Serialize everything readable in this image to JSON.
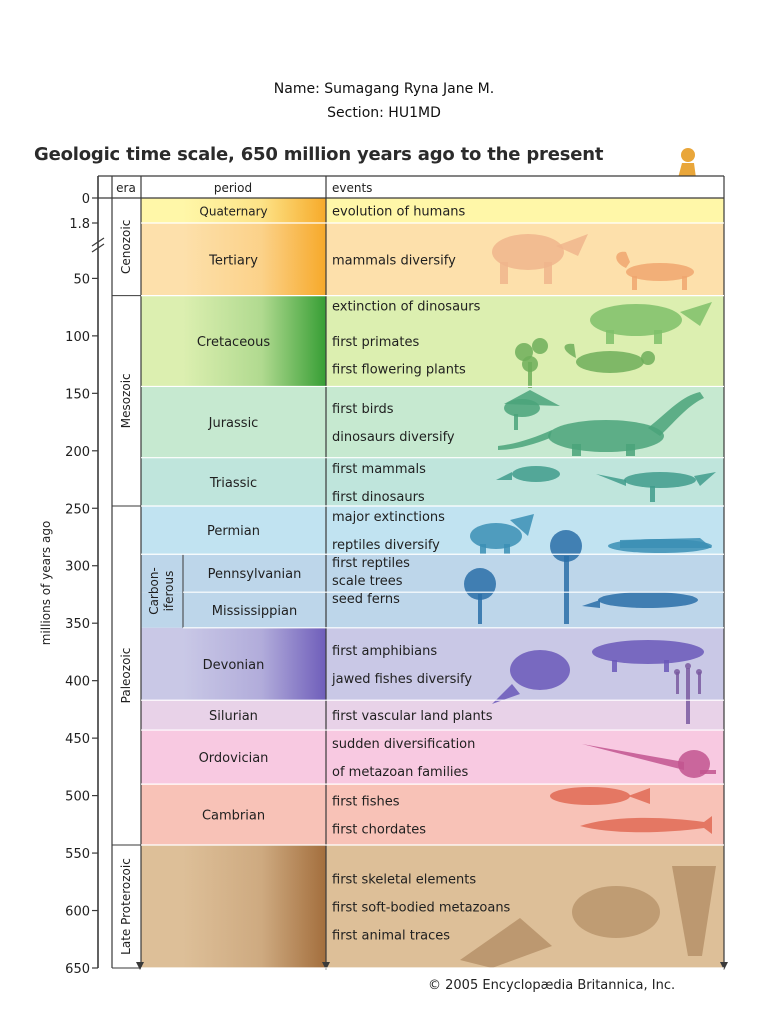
{
  "header": {
    "name_line": "Name: Sumagang Ryna Jane M.",
    "section_line": "Section: HU1MD"
  },
  "title": "Geologic time scale, 650 million years ago to the present",
  "credit": "© 2005 Encyclopædia Britannica, Inc.",
  "chart_data": {
    "type": "table",
    "column_headers": [
      "era",
      "period",
      "events"
    ],
    "axis_label": "millions of years ago",
    "ticks": [
      0,
      1.8,
      50,
      100,
      150,
      200,
      250,
      300,
      350,
      400,
      450,
      500,
      550,
      600,
      650
    ],
    "eras": [
      {
        "name": "Cenozoic",
        "start": 0,
        "end": 65
      },
      {
        "name": "Mesozoic",
        "start": 65,
        "end": 248
      },
      {
        "name": "Paleozoic",
        "start": 248,
        "end": 543
      },
      {
        "name": "Late Proterozoic",
        "start": 543,
        "end": 650
      }
    ],
    "subgroup": {
      "name_lines": [
        "Carbon-",
        "iferous"
      ],
      "start": 290,
      "end": 354
    },
    "periods": [
      {
        "name": "Quaternary",
        "start": 0,
        "end": 1.8,
        "color": "#fff7a8",
        "events": [
          "evolution of humans"
        ]
      },
      {
        "name": "Tertiary",
        "start": 1.8,
        "end": 65,
        "color": "#fde0ab",
        "events": [
          "mammals diversify"
        ]
      },
      {
        "name": "Cretaceous",
        "start": 65,
        "end": 144,
        "color": "#dcefb0",
        "events": [
          "extinction of dinosaurs",
          "first primates",
          "first flowering plants"
        ]
      },
      {
        "name": "Jurassic",
        "start": 144,
        "end": 206,
        "color": "#c6e9d0",
        "events": [
          "first birds",
          "dinosaurs diversify"
        ]
      },
      {
        "name": "Triassic",
        "start": 206,
        "end": 248,
        "color": "#bfe5dc",
        "events": [
          "first mammals",
          "first dinosaurs"
        ]
      },
      {
        "name": "Permian",
        "start": 248,
        "end": 290,
        "color": "#c1e3f1",
        "events": [
          "major extinctions",
          "reptiles diversify"
        ]
      },
      {
        "name": "Pennsylvanian",
        "start": 290,
        "end": 323,
        "color": "#bdd6ea",
        "events": [
          "first reptiles",
          "scale trees",
          "seed ferns"
        ]
      },
      {
        "name": "Mississippian",
        "start": 323,
        "end": 354,
        "color": "#bdd6ea",
        "events": []
      },
      {
        "name": "Devonian",
        "start": 354,
        "end": 417,
        "color": "#c9c8e6",
        "events": [
          "first amphibians",
          "jawed fishes diversify"
        ]
      },
      {
        "name": "Silurian",
        "start": 417,
        "end": 443,
        "color": "#e8d2e8",
        "events": [
          "first vascular land plants"
        ]
      },
      {
        "name": "Ordovician",
        "start": 443,
        "end": 490,
        "color": "#f8c9e1",
        "events": [
          "sudden diversification",
          " of metazoan families"
        ]
      },
      {
        "name": "Cambrian",
        "start": 490,
        "end": 543,
        "color": "#f8c2b7",
        "events": [
          "first fishes",
          "first chordates"
        ]
      },
      {
        "name": "",
        "start": 543,
        "end": 650,
        "color": "#ddbf98",
        "events": [
          "first skeletal elements",
          "first soft-bodied metazoans",
          "first animal traces"
        ]
      }
    ],
    "gradients": [
      {
        "start": 0,
        "end": 65,
        "color": "#f6a623"
      },
      {
        "start": 65,
        "end": 144,
        "color": "#2e9a2e"
      },
      {
        "start": 354,
        "end": 417,
        "color": "#6a58b8"
      },
      {
        "start": 543,
        "end": 650,
        "color": "#a06a38"
      }
    ],
    "illustrations": [
      {
        "name": "human-icon",
        "color": "#e9a63a"
      },
      {
        "name": "rhino-icon",
        "color": "#f0b58c"
      },
      {
        "name": "cat-mammal-icon",
        "color": "#f0a66e"
      },
      {
        "name": "triceratops-icon",
        "color": "#7fbf6a"
      },
      {
        "name": "primate-icon",
        "color": "#6fae5a"
      },
      {
        "name": "flower-plant-icon",
        "color": "#6fae5a"
      },
      {
        "name": "bird-icon",
        "color": "#4aa37a"
      },
      {
        "name": "sauropod-icon",
        "color": "#4aa37a"
      },
      {
        "name": "mammal-icon",
        "color": "#3f9c8c"
      },
      {
        "name": "theropod-icon",
        "color": "#3f9c8c"
      },
      {
        "name": "reptile-icon",
        "color": "#3b8fb5"
      },
      {
        "name": "dimetrodon-icon",
        "color": "#3b8fb5"
      },
      {
        "name": "scale-tree-icon",
        "color": "#2a6fa8"
      },
      {
        "name": "seed-fern-icon",
        "color": "#2a6fa8"
      },
      {
        "name": "early-reptile-icon",
        "color": "#2a6fa8"
      },
      {
        "name": "jawed-fish-icon",
        "color": "#6a58b8"
      },
      {
        "name": "amphibian-icon",
        "color": "#6a58b8"
      },
      {
        "name": "vascular-plant-icon",
        "color": "#7a5aa0"
      },
      {
        "name": "nautiloid-icon",
        "color": "#c2558f"
      },
      {
        "name": "squid-icon",
        "color": "#c2558f"
      },
      {
        "name": "cambrian-fish-icon",
        "color": "#e06a55"
      },
      {
        "name": "chordate-icon",
        "color": "#e06a55"
      },
      {
        "name": "fossil-traces-icon",
        "color": "#9c7248"
      },
      {
        "name": "shell-icon",
        "color": "#9c7248"
      },
      {
        "name": "cone-shell-icon",
        "color": "#9c7248"
      }
    ]
  }
}
